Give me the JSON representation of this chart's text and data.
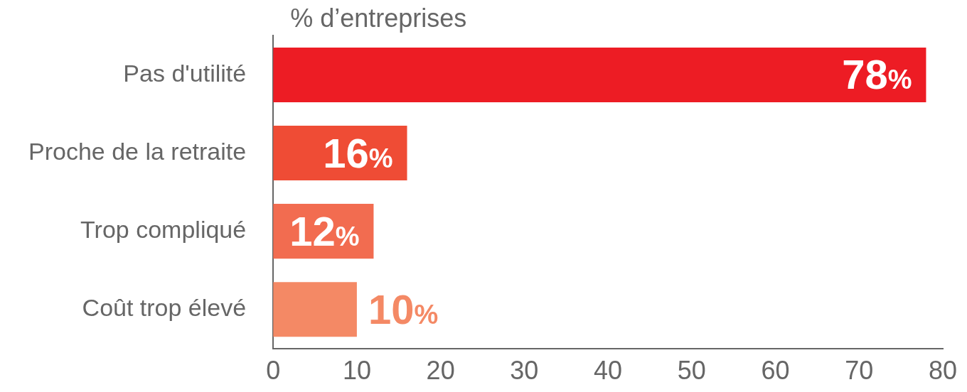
{
  "chart_data": {
    "type": "bar",
    "orientation": "horizontal",
    "xlabel": "% d’entreprises",
    "categories": [
      "Pas d'utilité",
      "Proche de la retraite",
      "Trop compliqué",
      "Coût trop élevé"
    ],
    "values": [
      78,
      16,
      12,
      10
    ],
    "colors": [
      "#ed1c24",
      "#ef4c35",
      "#f26c50",
      "#f48965"
    ],
    "value_labels": [
      "78%",
      "16%",
      "12%",
      "10%"
    ],
    "xlim": [
      0,
      80
    ],
    "xticks": [
      0,
      10,
      20,
      30,
      40,
      50,
      60,
      70,
      80
    ],
    "grid": false,
    "legend": false
  }
}
